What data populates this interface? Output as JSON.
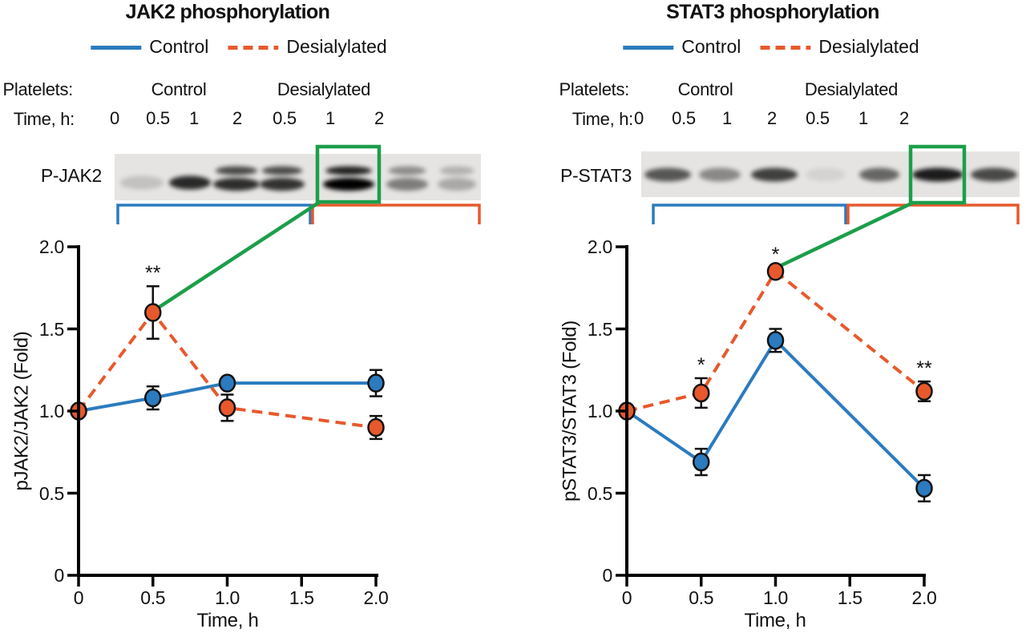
{
  "colors": {
    "control": "#2B7BBE",
    "desialylated": "#E7592C",
    "highlight": "#1C9E4A",
    "axis": "#000000",
    "text": "#111111",
    "blot_background": "#E5E4E2"
  },
  "figure": {
    "panels": [
      {
        "blot": {
          "protein_label": "P-JAK2",
          "platelets_label": "Platelets:",
          "time_label": "Time, h:",
          "groups": [
            "Control",
            "Desialylated"
          ],
          "lane_times": [
            "0",
            "0.5",
            "1",
            "2",
            "0.5",
            "1",
            "2"
          ],
          "lane_intensities": [
            0.15,
            0.82,
            0.8,
            0.78,
            1.0,
            0.45,
            0.26
          ],
          "highlighted_lane_index": 4
        }
      },
      {
        "blot": {
          "protein_label": "P-STAT3",
          "platelets_label": "Platelets:",
          "time_label": "Time, h:",
          "groups": [
            "Control",
            "Desialylated"
          ],
          "lane_times": [
            "0",
            "0.5",
            "1",
            "2",
            "0.5",
            "1",
            "2"
          ],
          "lane_intensities": [
            0.62,
            0.4,
            0.72,
            0.07,
            0.55,
            0.88,
            0.68
          ],
          "highlighted_lane_index": 5
        }
      }
    ]
  },
  "chart_data": [
    {
      "type": "line",
      "title": "JAK2 phosphorylation",
      "xlabel": "Time, h",
      "ylabel": "pJAK2/JAK2 (Fold)",
      "xlim": [
        0,
        2
      ],
      "ylim": [
        0,
        2
      ],
      "grid": false,
      "legend_position": "top",
      "x": [
        0,
        0.5,
        1,
        2
      ],
      "xticks": [
        0,
        0.5,
        1,
        1.5,
        2
      ],
      "xtick_labels": [
        "0",
        "0.5",
        "1.0",
        "1.5",
        "2.0"
      ],
      "yticks": [
        0,
        0.5,
        1,
        1.5,
        2
      ],
      "ytick_labels": [
        "0",
        "0.5",
        "1.0",
        "1.5",
        "2.0"
      ],
      "series": [
        {
          "name": "Control",
          "style": "solid",
          "values": [
            1.0,
            1.08,
            1.17,
            1.17
          ],
          "errors": [
            0,
            0.07,
            0,
            0.08
          ],
          "significance": [
            "",
            "",
            "",
            ""
          ]
        },
        {
          "name": "Desialylated",
          "style": "dashed",
          "values": [
            1.0,
            1.6,
            1.02,
            0.9
          ],
          "errors": [
            0,
            0.16,
            0.08,
            0.07
          ],
          "significance": [
            "",
            "**",
            "",
            ""
          ]
        }
      ]
    },
    {
      "type": "line",
      "title": "STAT3 phosphorylation",
      "xlabel": "Time, h",
      "ylabel": "pSTAT3/STAT3 (Fold)",
      "xlim": [
        0,
        2
      ],
      "ylim": [
        0,
        2
      ],
      "grid": false,
      "legend_position": "top",
      "x": [
        0,
        0.5,
        1,
        2
      ],
      "xticks": [
        0,
        0.5,
        1,
        1.5,
        2
      ],
      "xtick_labels": [
        "0",
        "0.5",
        "1.0",
        "1.5",
        "2.0"
      ],
      "yticks": [
        0,
        0.5,
        1,
        1.5,
        2
      ],
      "ytick_labels": [
        "0",
        "0.5",
        "1.0",
        "1.5",
        "2.0"
      ],
      "series": [
        {
          "name": "Control",
          "style": "solid",
          "values": [
            1.0,
            0.69,
            1.43,
            0.53
          ],
          "errors": [
            0,
            0.08,
            0.07,
            0.08
          ],
          "significance": [
            "",
            "",
            "",
            ""
          ]
        },
        {
          "name": "Desialylated",
          "style": "dashed",
          "values": [
            1.0,
            1.11,
            1.85,
            1.12
          ],
          "errors": [
            0,
            0.09,
            0,
            0.06
          ],
          "significance": [
            "",
            "*",
            "*",
            "**"
          ]
        }
      ]
    }
  ]
}
